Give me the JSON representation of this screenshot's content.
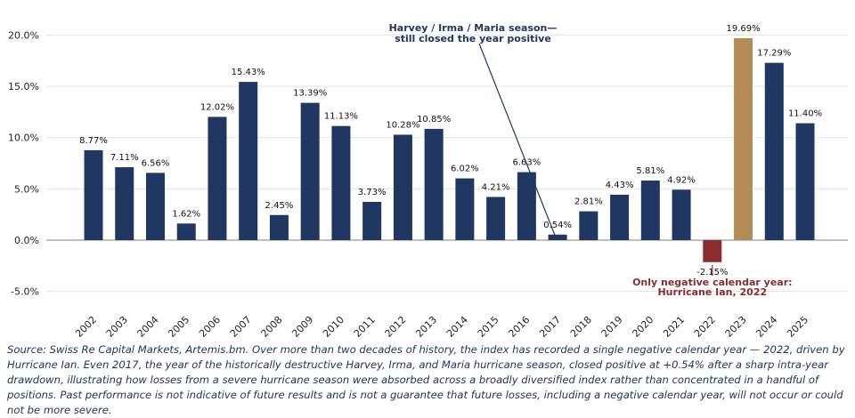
{
  "chart_data": {
    "type": "bar",
    "title": "",
    "xlabel": "",
    "ylabel": "",
    "ylim": [
      -6,
      21
    ],
    "yticks": [
      -5,
      0,
      5,
      10,
      15,
      20
    ],
    "ytick_labels": [
      "-5.0%",
      "0.0%",
      "5.0%",
      "10.0%",
      "15.0%",
      "20.0%"
    ],
    "grid": "horizontal, light",
    "categories": [
      "2002",
      "2003",
      "2004",
      "2005",
      "2006",
      "2007",
      "2008",
      "2009",
      "2010",
      "2011",
      "2012",
      "2013",
      "2014",
      "2015",
      "2016",
      "2017",
      "2018",
      "2019",
      "2020",
      "2021",
      "2022",
      "2023",
      "2024",
      "2025"
    ],
    "values": [
      8.77,
      7.11,
      6.56,
      1.62,
      12.02,
      15.43,
      2.45,
      13.39,
      11.13,
      3.73,
      10.28,
      10.85,
      6.02,
      4.21,
      6.63,
      0.54,
      2.81,
      4.43,
      5.81,
      4.92,
      -2.15,
      19.69,
      17.29,
      11.4
    ],
    "value_labels": [
      "8.77%",
      "7.11%",
      "6.56%",
      "1.62%",
      "12.02%",
      "15.43%",
      "2.45%",
      "13.39%",
      "11.13%",
      "3.73%",
      "10.28%",
      "10.85%",
      "6.02%",
      "4.21%",
      "6.63%",
      "0.54%",
      "2.81%",
      "4.43%",
      "5.81%",
      "4.92%",
      "-2.15%",
      "19.69%",
      "17.29%",
      "11.40%"
    ],
    "bar_colors": [
      "#1f3761",
      "#1f3761",
      "#1f3761",
      "#1f3761",
      "#1f3761",
      "#1f3761",
      "#1f3761",
      "#1f3761",
      "#1f3761",
      "#1f3761",
      "#1f3761",
      "#1f3761",
      "#1f3761",
      "#1f3761",
      "#1f3761",
      "#1f3761",
      "#1f3761",
      "#1f3761",
      "#1f3761",
      "#1f3761",
      "#8b2c2e",
      "#b38b57",
      "#1f3761",
      "#1f3761"
    ],
    "annotations": [
      {
        "category": "2017",
        "lines": [
          "Harvey / Irma / Maria season—",
          "still closed the year positive"
        ],
        "color": "#1f3761"
      },
      {
        "category": "2022",
        "lines": [
          "Only negative calendar year:",
          "Hurricane Ian, 2022"
        ],
        "color": "#8b2c2e"
      }
    ]
  },
  "caption": "Source: Swiss Re Capital Markets, Artemis.bm. Over more than two decades of history, the index has recorded a single negative calendar year — 2022, driven by Hurricane Ian. Even 2017, the year of the historically destructive Harvey, Irma, and Maria hurricane season, closed positive at +0.54% after a sharp intra-year drawdown, illustrating how losses from a severe hurricane season were absorbed across a broadly diversified index rather than concentrated in a handful of positions. Past performance is not indicative of future results and is not a guarantee that future losses, including a negative calendar year, will not occur or could not be more severe."
}
